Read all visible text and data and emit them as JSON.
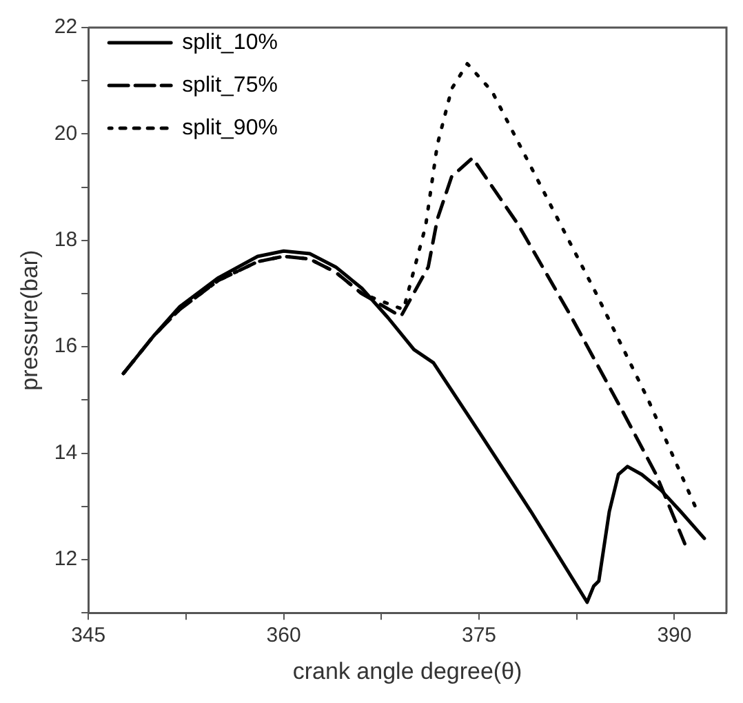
{
  "chart_data": {
    "type": "line",
    "xlabel": "crank angle degree(θ)",
    "ylabel": "pressure(bar)",
    "xlim": [
      345,
      394
    ],
    "ylim": [
      11,
      22
    ],
    "xticks": [
      345,
      {
        "value": 352.5,
        "label": null
      },
      360,
      {
        "value": 367.5,
        "label": null
      },
      375,
      {
        "value": 382.5,
        "label": null
      },
      390
    ],
    "yticks": [
      {
        "value": 11,
        "label": null
      },
      12,
      {
        "value": 13,
        "label": null
      },
      14,
      {
        "value": 15,
        "label": null
      },
      16,
      {
        "value": 17,
        "label": null
      },
      18,
      {
        "value": 19,
        "label": null
      },
      20,
      {
        "value": 21,
        "label": null
      },
      22
    ],
    "grid": false,
    "legend": "top left",
    "marker": "none",
    "series": [
      {
        "name": "split_10%",
        "color": "#000000",
        "line_style": "solid",
        "x": [
          347.7,
          350,
          352,
          355,
          358,
          360,
          362,
          364,
          366,
          368,
          370,
          371.5,
          375,
          379,
          383.3,
          383.8,
          384.2,
          385,
          385.7,
          386.4,
          387.5,
          389,
          390.5,
          392.3
        ],
        "values": [
          15.5,
          16.2,
          16.75,
          17.3,
          17.7,
          17.8,
          17.75,
          17.5,
          17.1,
          16.55,
          15.95,
          15.7,
          14.4,
          12.9,
          11.2,
          11.5,
          11.6,
          12.9,
          13.6,
          13.75,
          13.6,
          13.3,
          12.9,
          12.4
        ]
      },
      {
        "name": "split_75%",
        "color": "#000000",
        "line_style": "dashed",
        "x": [
          347.7,
          350,
          352,
          355,
          358,
          360,
          362,
          364,
          366,
          369,
          371.1,
          371.8,
          372.9,
          374.5,
          378,
          382,
          386,
          388.6,
          390.8
        ],
        "values": [
          15.5,
          16.2,
          16.7,
          17.25,
          17.6,
          17.7,
          17.65,
          17.4,
          17.0,
          16.57,
          17.5,
          18.4,
          19.2,
          19.55,
          18.3,
          16.6,
          14.8,
          13.6,
          12.3
        ]
      },
      {
        "name": "split_90%",
        "color": "#000000",
        "line_style": "dotted",
        "x": [
          347.7,
          350,
          352,
          355,
          358,
          360,
          362,
          364,
          366,
          369.2,
          370.9,
          371.8,
          372.9,
          374.1,
          376,
          380,
          384,
          388,
          391.6
        ],
        "values": [
          15.5,
          16.2,
          16.7,
          17.25,
          17.6,
          17.7,
          17.65,
          17.4,
          17.0,
          16.7,
          18.27,
          19.8,
          20.85,
          21.32,
          20.8,
          18.9,
          17.0,
          15.0,
          13.0
        ]
      }
    ]
  }
}
